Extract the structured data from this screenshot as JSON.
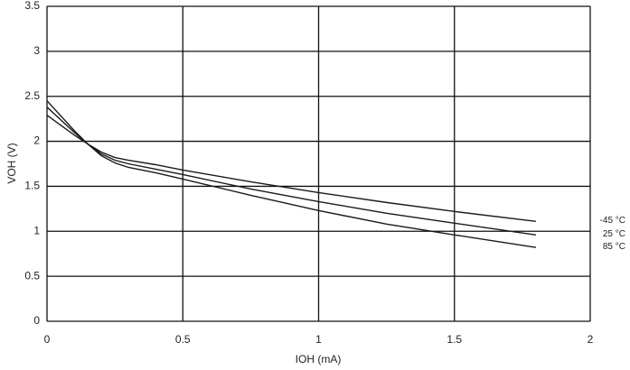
{
  "chart_data": {
    "type": "line",
    "x_label": "IOH (mA)",
    "y_label": "VOH (V)",
    "x": [
      0,
      0.1,
      0.15,
      0.2,
      0.25,
      0.3,
      0.4,
      0.5,
      0.75,
      1,
      1.25,
      1.5,
      1.8
    ],
    "series": [
      {
        "name": "-45 °C",
        "color": "#1a1a1a",
        "values": [
          2.29,
          2.07,
          1.97,
          1.88,
          1.82,
          1.79,
          1.74,
          1.68,
          1.55,
          1.43,
          1.32,
          1.22,
          1.11
        ]
      },
      {
        "name": "25 °C",
        "color": "#1a1a1a",
        "values": [
          2.38,
          2.1,
          1.97,
          1.86,
          1.79,
          1.75,
          1.69,
          1.63,
          1.47,
          1.33,
          1.2,
          1.09,
          0.96
        ]
      },
      {
        "name": "85 °C",
        "color": "#1a1a1a",
        "values": [
          2.45,
          2.12,
          1.97,
          1.84,
          1.76,
          1.71,
          1.65,
          1.58,
          1.4,
          1.23,
          1.08,
          0.96,
          0.82
        ]
      }
    ],
    "xlim": [
      0,
      2
    ],
    "xticks": [
      0,
      0.5,
      1,
      1.5,
      2
    ],
    "ylim": [
      0,
      3.5
    ],
    "yticks": [
      0,
      0.5,
      1,
      1.5,
      2,
      2.5,
      3,
      3.5
    ],
    "grid": true
  }
}
